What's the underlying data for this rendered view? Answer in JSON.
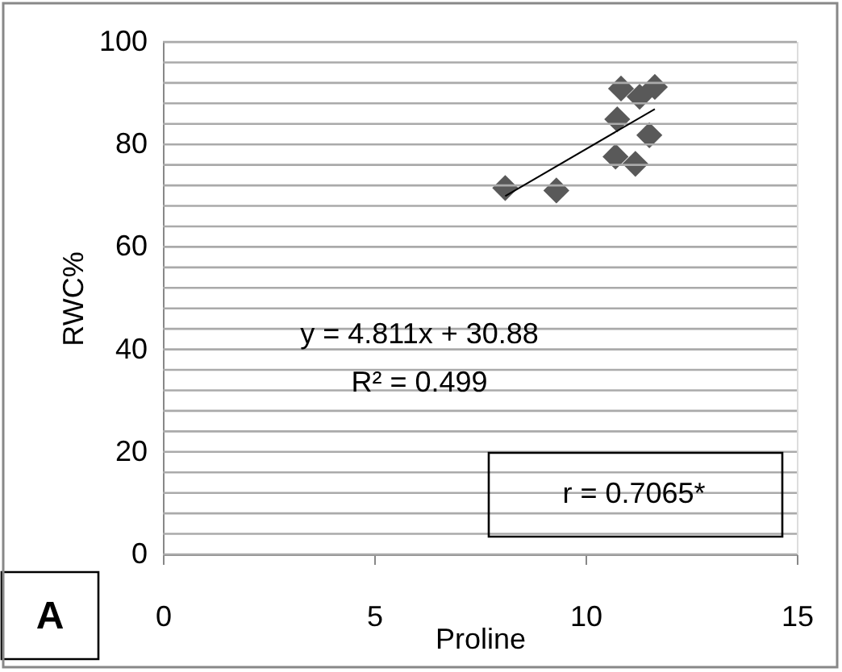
{
  "chart_data": {
    "type": "scatter",
    "xlabel": "Proline",
    "ylabel": "RWC%",
    "series": [
      {
        "type": "scatter",
        "color": "#595959",
        "x": [
          8.1,
          9.31,
          10.84,
          11.28,
          11.64,
          10.75,
          11.51,
          10.71,
          11.18
        ],
        "values": [
          71.5,
          71.0,
          90.9,
          89.3,
          91.2,
          84.9,
          81.8,
          77.6,
          76.2
        ]
      },
      {
        "type": "line",
        "color": "#000000",
        "marker": "none",
        "line_style": "solid",
        "x": [
          8.1,
          11.64
        ],
        "values": [
          69.9,
          86.9
        ]
      }
    ],
    "xlim": [
      0,
      15
    ],
    "xticks": [
      0,
      5,
      10,
      15
    ],
    "ylim": [
      0,
      100
    ],
    "yticks": [
      0,
      {
        "value": 4,
        "label": null
      },
      {
        "value": 8,
        "label": null
      },
      {
        "value": 12,
        "label": null
      },
      {
        "value": 16,
        "label": null
      },
      20,
      {
        "value": 24,
        "label": null
      },
      {
        "value": 28,
        "label": null
      },
      {
        "value": 32,
        "label": null
      },
      {
        "value": 36,
        "label": null
      },
      40,
      {
        "value": 44,
        "label": null
      },
      {
        "value": 48,
        "label": null
      },
      {
        "value": 52,
        "label": null
      },
      {
        "value": 56,
        "label": null
      },
      60,
      {
        "value": 64,
        "label": null
      },
      {
        "value": 68,
        "label": null
      },
      {
        "value": 72,
        "label": null
      },
      {
        "value": 76,
        "label": null
      },
      80,
      {
        "value": 84,
        "label": null
      },
      {
        "value": 88,
        "label": null
      },
      {
        "value": 92,
        "label": null
      },
      {
        "value": 96,
        "label": null
      },
      100
    ],
    "grid": "y",
    "marker": "diamond",
    "annotations": [
      "y = 4.811x + 30.88",
      "R² = 0.499",
      "r = 0.7065*",
      "A"
    ]
  }
}
